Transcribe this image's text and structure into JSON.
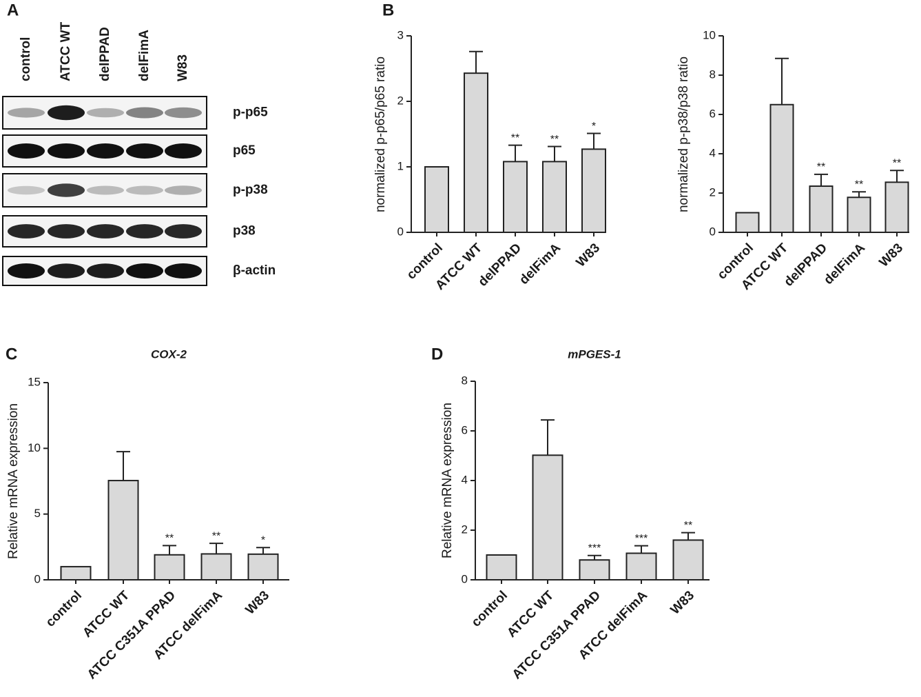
{
  "panel_labels": [
    "A",
    "B",
    "C",
    "D"
  ],
  "blot": {
    "lanes": [
      "control",
      "ATCC WT",
      "delPPAD",
      "delFimA",
      "W83"
    ],
    "rows": [
      "p-p65",
      "p65",
      "p-p38",
      "p38",
      "β-actin"
    ]
  },
  "chart_data": [
    {
      "type": "bar",
      "y_label": "normalized p-p65/p65 ratio",
      "categories": [
        "control",
        "ATCC WT",
        "delPPAD",
        "delFimA",
        "W83"
      ],
      "values": [
        1,
        2.43,
        1.08,
        1.08,
        1.27
      ],
      "errors": [
        null,
        0.33,
        0.25,
        0.23,
        0.24
      ],
      "annotations": [
        null,
        null,
        "**",
        "**",
        "*"
      ],
      "color": "#d9d9d9",
      "ylim": [
        0,
        3
      ],
      "yticks": [
        0,
        1,
        2,
        3
      ]
    },
    {
      "type": "bar",
      "y_label": "normalized p-p38/p38 ratio",
      "categories": [
        "control",
        "ATCC WT",
        "delPPAD",
        "delFimA",
        "W83"
      ],
      "values": [
        1,
        6.5,
        2.35,
        1.78,
        2.55
      ],
      "errors": [
        null,
        2.35,
        0.6,
        0.28,
        0.6
      ],
      "annotations": [
        null,
        null,
        "**",
        "**",
        "**"
      ],
      "color": "#d9d9d9",
      "ylim": [
        0,
        10
      ],
      "yticks": [
        0,
        2,
        4,
        6,
        8,
        10
      ]
    },
    {
      "type": "bar",
      "title": "COX-2",
      "y_label": "Relative mRNA expression",
      "categories": [
        "control",
        "ATCC WT",
        "ATCC C351A PPAD",
        "ATCC delFimA",
        "W83"
      ],
      "values": [
        1,
        7.55,
        1.9,
        1.97,
        1.95
      ],
      "errors": [
        null,
        2.2,
        0.7,
        0.8,
        0.5
      ],
      "annotations": [
        null,
        null,
        "**",
        "**",
        "*"
      ],
      "color": "#d9d9d9",
      "ylim": [
        0,
        15
      ],
      "yticks": [
        0,
        5,
        10,
        15
      ]
    },
    {
      "type": "bar",
      "title": "mPGES-1",
      "y_label": "Relative mRNA expression",
      "categories": [
        "control",
        "ATCC WT",
        "ATCC C351A PPAD",
        "ATCC delFimA",
        "W83"
      ],
      "values": [
        1,
        5.02,
        0.8,
        1.07,
        1.6
      ],
      "errors": [
        null,
        1.42,
        0.18,
        0.3,
        0.3
      ],
      "annotations": [
        null,
        null,
        "***",
        "***",
        "**"
      ],
      "color": "#d9d9d9",
      "ylim": [
        0,
        8
      ],
      "yticks": [
        0,
        2,
        4,
        6,
        8
      ]
    }
  ]
}
